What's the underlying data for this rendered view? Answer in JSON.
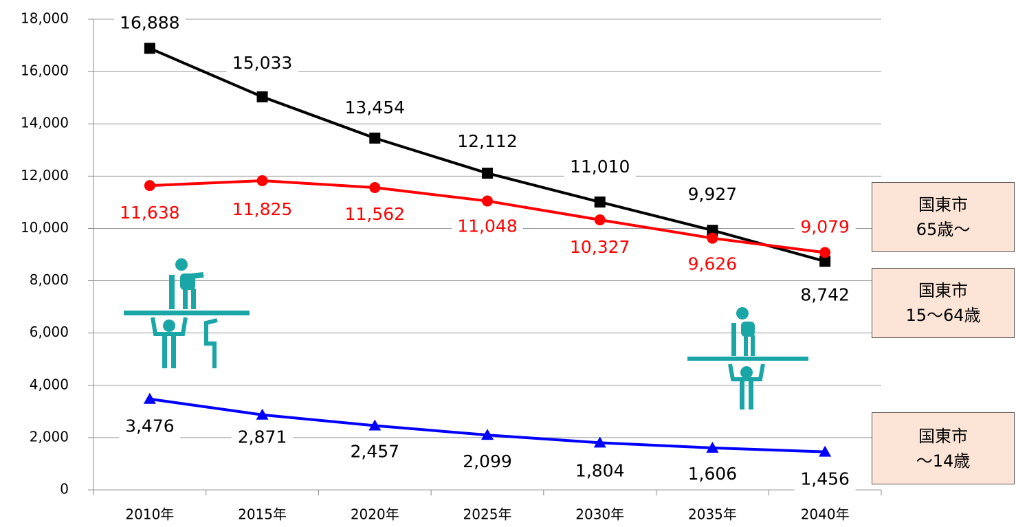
{
  "chart_data": {
    "type": "line",
    "categories": [
      "2010年",
      "2015年",
      "2020年",
      "2025年",
      "2030年",
      "2035年",
      "2040年"
    ],
    "ylim": [
      0,
      18000
    ],
    "yticks": [
      0,
      {
        "value": 2000,
        "label": "2,000"
      },
      {
        "value": 4000,
        "label": "4,000"
      },
      {
        "value": 6000,
        "label": "6,000"
      },
      {
        "value": 8000,
        "label": "8,000"
      },
      {
        "value": 10000,
        "label": "10,000"
      },
      {
        "value": 12000,
        "label": "12,000"
      },
      {
        "value": 14000,
        "label": "14,000"
      },
      {
        "value": 16000,
        "label": "16,000"
      },
      {
        "value": 18000,
        "label": "18,000"
      }
    ],
    "grid": true,
    "series": [
      {
        "name": "国東市\n15〜64歳",
        "color": "#000000",
        "marker": "square",
        "label_color": "#000000",
        "values": [
          16888,
          15033,
          13454,
          12112,
          11010,
          9927,
          8742
        ],
        "value_labels": [
          "16,888",
          "15,033",
          "13,454",
          "12,112",
          "11,010",
          "9,927",
          "8,742"
        ]
      },
      {
        "name": "国東市\n65歳〜",
        "color": "#ff0000",
        "marker": "circle",
        "label_color": "#ff0000",
        "values": [
          11638,
          11825,
          11562,
          11048,
          10327,
          9626,
          9079
        ],
        "value_labels": [
          "11,638",
          "11,825",
          "11,562",
          "11,048",
          "10,327",
          "9,626",
          "9,079"
        ]
      },
      {
        "name": "国東市\n〜14歳",
        "color": "#0000ff",
        "marker": "triangle",
        "label_color": "#000000",
        "values": [
          3476,
          2871,
          2457,
          2099,
          1804,
          1606,
          1456
        ],
        "value_labels": [
          "3,476",
          "2,871",
          "2,457",
          "2,099",
          "1,804",
          "1,606",
          "1,456"
        ]
      }
    ]
  }
}
